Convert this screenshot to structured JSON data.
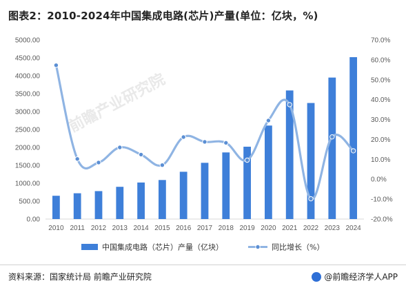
{
  "title": "图表2：2010-2024年中国集成电路(芯片)产量(单位：亿块，%)",
  "source": {
    "text": "资料来源：国家统计局 前瞻产业研究院",
    "brand": "@前瞻经济学人APP"
  },
  "watermark": "前瞻产业研究院",
  "colors": {
    "bar": "#3e7fd9",
    "line": "#8fb4e3",
    "marker": "#5b8fd4"
  },
  "chart_data": {
    "type": "bar",
    "categories": [
      "2010",
      "2011",
      "2012",
      "2013",
      "2014",
      "2015",
      "2016",
      "2017",
      "2018",
      "2019",
      "2020",
      "2021",
      "2022",
      "2023",
      "2024"
    ],
    "series": [
      {
        "name": "中国集成电路（芯片）产量（亿块）",
        "type": "bar",
        "axis": "left",
        "values": [
          650,
          720,
          780,
          900,
          1020,
          1090,
          1320,
          1570,
          1860,
          2020,
          2610,
          3590,
          3240,
          3950,
          4520
        ]
      },
      {
        "name": "同比增长（%）",
        "type": "line",
        "axis": "right",
        "values": [
          57.3,
          10.2,
          8.4,
          16.0,
          12.4,
          7.1,
          21.2,
          18.8,
          18.3,
          9.6,
          29.5,
          37.5,
          -9.8,
          21.3,
          14.3
        ]
      }
    ],
    "y_left": {
      "min": 0,
      "max": 5000,
      "step": 500,
      "ticks": [
        "0.00",
        "500.00",
        "1000.00",
        "1500.00",
        "2000.00",
        "2500.00",
        "3000.00",
        "3500.00",
        "4000.00",
        "4500.00",
        "5000.00"
      ]
    },
    "y_right": {
      "min": -20,
      "max": 70,
      "step": 10,
      "ticks": [
        "-20.0%",
        "-10.0%",
        "0.0%",
        "10.0%",
        "20.0%",
        "30.0%",
        "40.0%",
        "50.0%",
        "60.0%",
        "70.0%"
      ]
    },
    "legend_position": "bottom",
    "grid": false
  }
}
